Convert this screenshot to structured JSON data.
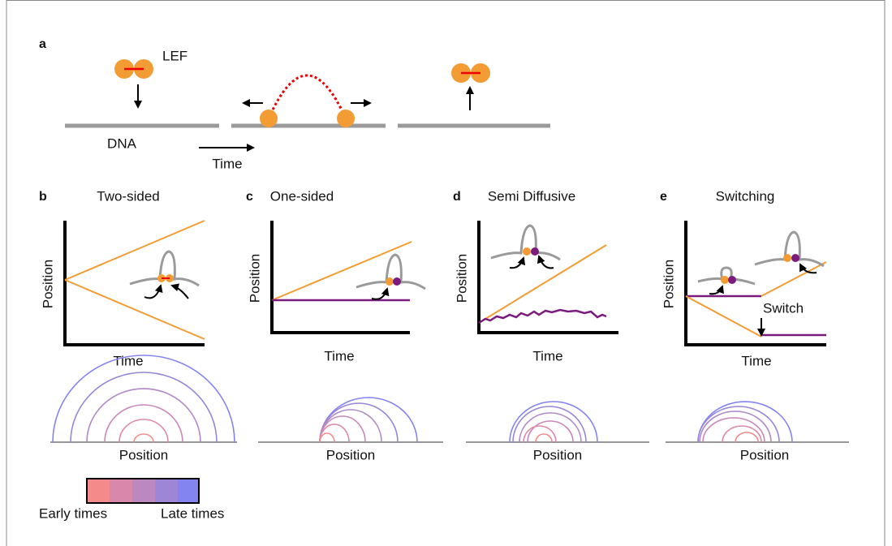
{
  "panel_a": {
    "letter": "a",
    "lef_label": "LEF",
    "dna_label": "DNA",
    "time_label": "Time"
  },
  "panels": [
    {
      "letter": "b",
      "title": "Two-sided",
      "y_label": "Position",
      "x_label": "Time",
      "arc_axis_label": "Position"
    },
    {
      "letter": "c",
      "title": "One-sided",
      "y_label": "Position",
      "x_label": "Time",
      "arc_axis_label": "Position"
    },
    {
      "letter": "d",
      "title": "Semi Diffusive",
      "y_label": "Position",
      "x_label": "Time",
      "arc_axis_label": "Position"
    },
    {
      "letter": "e",
      "title": "Switching",
      "y_label": "Position",
      "x_label": "Time",
      "arc_axis_label": "Position",
      "annotation": "Switch"
    }
  ],
  "legend": {
    "early": "Early times",
    "late": "Late times"
  }
}
